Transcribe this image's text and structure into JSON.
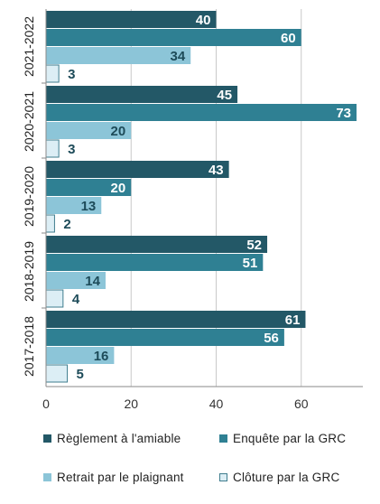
{
  "chart_data": {
    "type": "bar",
    "orientation": "horizontal",
    "categories": [
      "2021-2022",
      "2020-2021",
      "2019-2020",
      "2018-2019",
      "2017-2018"
    ],
    "series": [
      {
        "name": "Règlement à l'amiable",
        "values": [
          40,
          45,
          43,
          52,
          61
        ],
        "color": "#235867"
      },
      {
        "name": "Enquête par la GRC",
        "values": [
          60,
          73,
          20,
          51,
          56
        ],
        "color": "#2f8093"
      },
      {
        "name": "Retrait par le plaignant",
        "values": [
          34,
          20,
          13,
          14,
          16
        ],
        "color": "#8cc5d8"
      },
      {
        "name": "Clôture par la GRC",
        "values": [
          3,
          3,
          2,
          4,
          5
        ],
        "color": "#dceef5"
      }
    ],
    "xlim": [
      0,
      73
    ],
    "xticks": [
      0,
      20,
      40,
      60
    ],
    "grid": true,
    "legend_position": "bottom",
    "data_labels": true
  }
}
